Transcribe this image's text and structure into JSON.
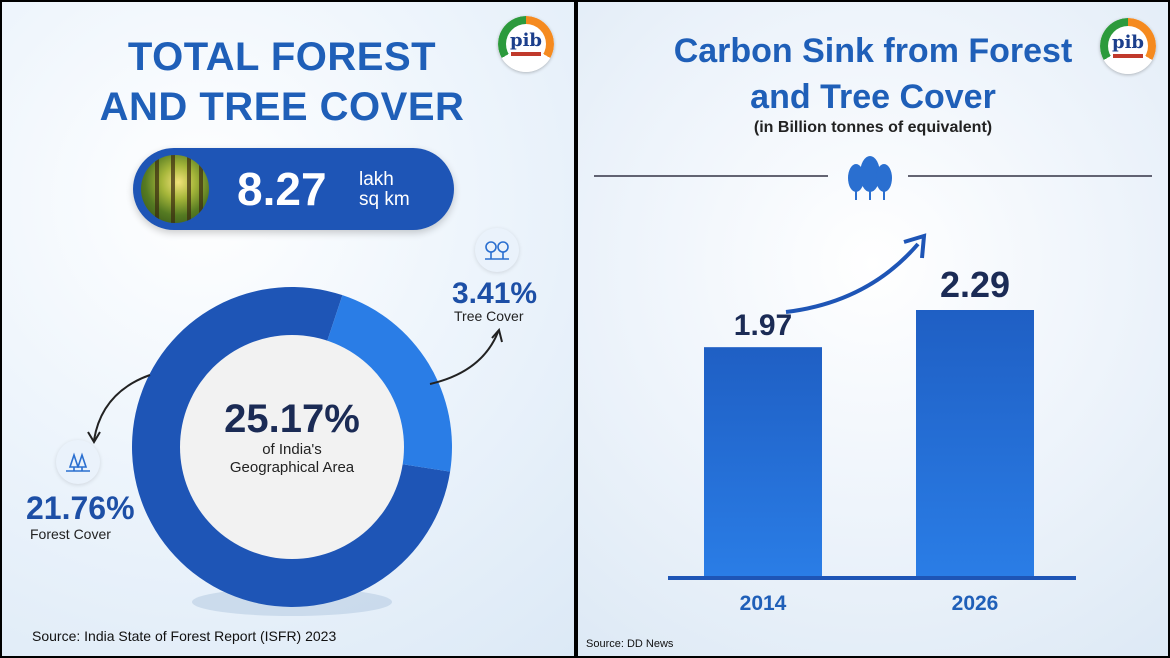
{
  "left": {
    "title_line1": "TOTAL FOREST",
    "title_line2": "AND TREE COVER",
    "logo_text": "pib",
    "total_value": "8.27",
    "total_unit_line1": "lakh",
    "total_unit_line2": "sq km",
    "center_value": "25.17%",
    "center_label_line1": "of India's",
    "center_label_line2": "Geographical Area",
    "tree_cover_value": "3.41%",
    "tree_cover_label": "Tree Cover",
    "forest_cover_value": "21.76%",
    "forest_cover_label": "Forest Cover",
    "source": "Source: India State of Forest Report (ISFR) 2023"
  },
  "right": {
    "title_line1": "Carbon Sink from Forest",
    "title_line2": "and Tree Cover",
    "subtitle": "(in Billion tonnes of equivalent)",
    "logo_text": "pib",
    "source": "Source: DD News"
  },
  "colors": {
    "dark_blue": "#1e55b6",
    "bright_blue": "#2a7de6",
    "title_blue": "#1f5fb8"
  },
  "chart_data": [
    {
      "type": "pie",
      "categories": [
        "Forest Cover",
        "Tree Cover"
      ],
      "values": [
        21.76,
        3.41
      ],
      "unit": "%"
    },
    {
      "type": "bar",
      "title": "Carbon Sink from Forest and Tree Cover",
      "subtitle": "(in Billion tonnes of equivalent)",
      "categories": [
        "2014",
        "2026"
      ],
      "values": [
        1.97,
        2.29
      ],
      "value_labels": [
        "1.97",
        "2.29"
      ],
      "ylim": [
        0,
        2.29
      ]
    }
  ]
}
